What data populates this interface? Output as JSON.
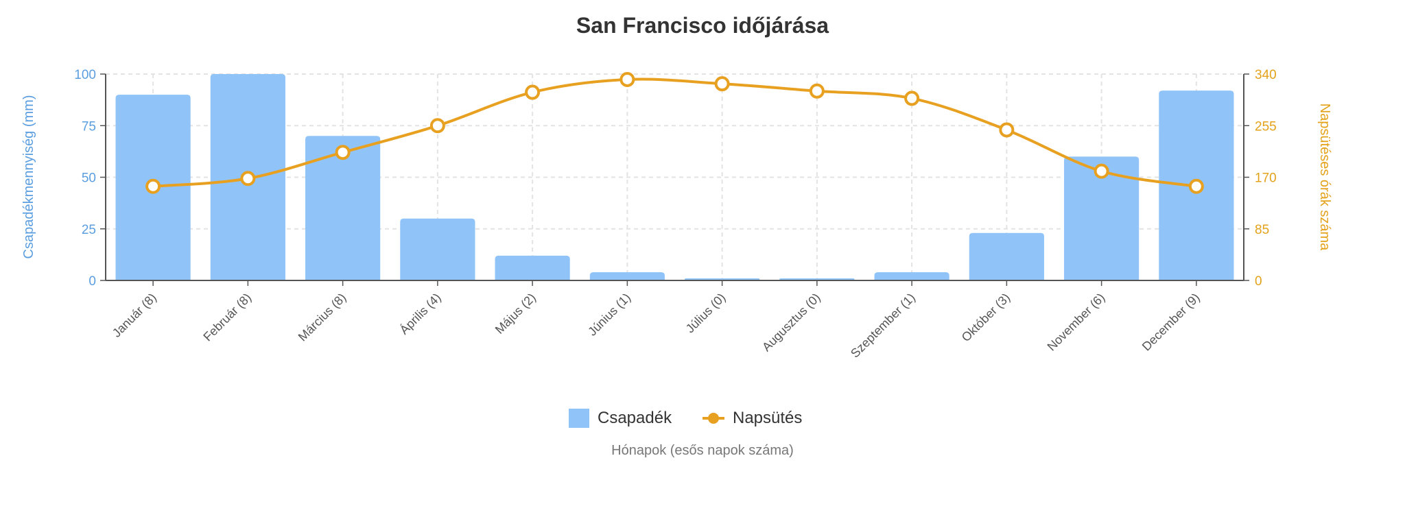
{
  "chart_data": {
    "type": "bar+line",
    "title": "San Francisco időjárása",
    "xlabel": "Hónapok (esős napok száma)",
    "ylabel_left": "Csapadékmennyiség (mm)",
    "ylabel_right": "Napsütéses órák száma",
    "categories": [
      "Január (8)",
      "Február (8)",
      "Március (8)",
      "Április (4)",
      "Május (2)",
      "Június (1)",
      "Július (0)",
      "Augusztus (0)",
      "Szeptember (1)",
      "Október (3)",
      "November (6)",
      "December (9)"
    ],
    "ylim_left": [
      0,
      100
    ],
    "yticks_left": [
      "0",
      "25",
      "50",
      "75",
      "100"
    ],
    "ylim_right": [
      0,
      340
    ],
    "yticks_right": [
      "0",
      "85",
      "170",
      "255",
      "340"
    ],
    "grid": true,
    "legend_position": "bottom",
    "series": [
      {
        "name": "Csapadék",
        "type": "bar",
        "axis": "left",
        "color": "#90c4f9",
        "values": [
          90,
          100,
          70,
          30,
          12,
          4,
          1,
          1,
          4,
          23,
          60,
          92
        ]
      },
      {
        "name": "Napsütés",
        "type": "line",
        "axis": "right",
        "color": "#e8a020",
        "values": [
          155,
          168,
          211,
          255,
          310,
          331,
          324,
          312,
          300,
          248,
          180,
          155
        ]
      }
    ]
  }
}
